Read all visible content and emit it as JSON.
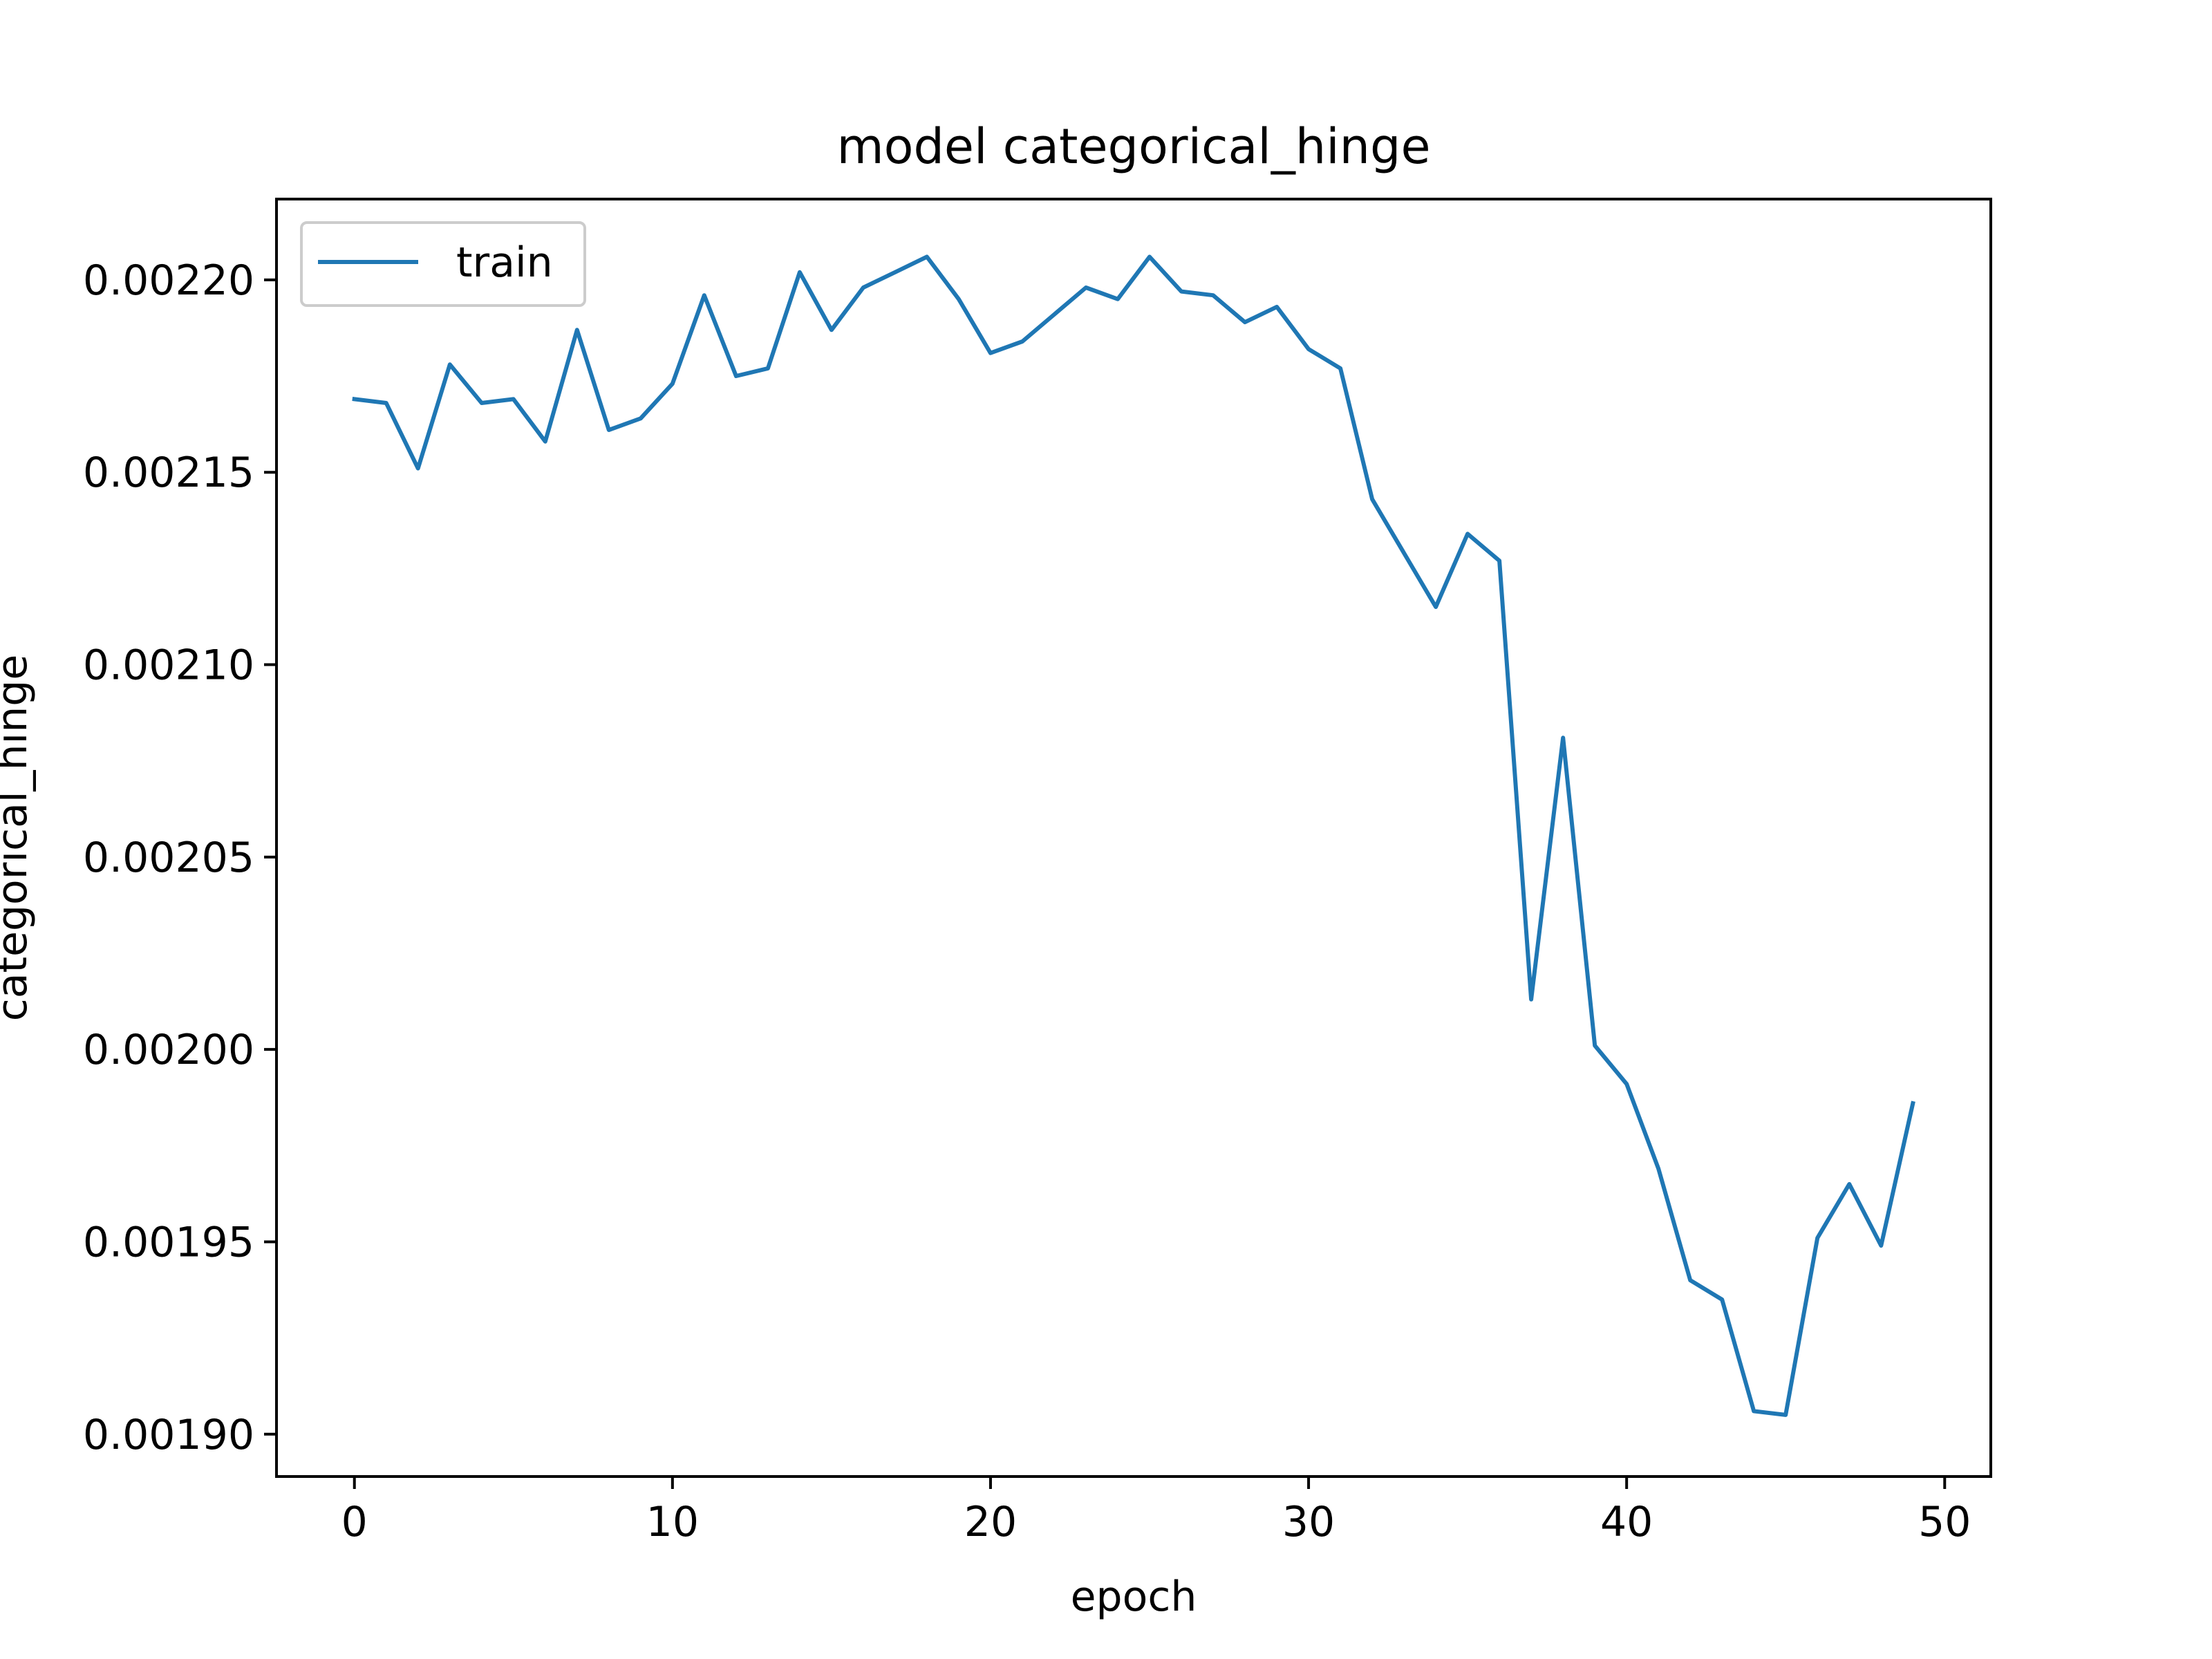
{
  "chart_data": {
    "type": "line",
    "title": "model categorical_hinge",
    "xlabel": "epoch",
    "ylabel": "categorical_hinge",
    "xlim": [
      -2.45,
      51.45
    ],
    "ylim": [
      0.001889,
      0.002221
    ],
    "xticks": [
      0,
      10,
      20,
      30,
      40,
      50
    ],
    "xtick_labels": [
      "0",
      "10",
      "20",
      "30",
      "40",
      "50"
    ],
    "yticks": [
      0.0019,
      0.00195,
      0.002,
      0.00205,
      0.0021,
      0.00215,
      0.0022
    ],
    "ytick_labels": [
      "0.00190",
      "0.00195",
      "0.00200",
      "0.00205",
      "0.00210",
      "0.00215",
      "0.00220"
    ],
    "grid": false,
    "legend_position": "upper left",
    "series": [
      {
        "name": "train",
        "color": "#1f77b4",
        "x": [
          0,
          1,
          2,
          3,
          4,
          5,
          6,
          7,
          8,
          9,
          10,
          11,
          12,
          13,
          14,
          15,
          16,
          17,
          18,
          19,
          20,
          21,
          22,
          23,
          24,
          25,
          26,
          27,
          28,
          29,
          30,
          31,
          32,
          33,
          34,
          35,
          36,
          37,
          38,
          39,
          40,
          41,
          42,
          43,
          44,
          45,
          46,
          47,
          48,
          49
        ],
        "values": [
          0.002169,
          0.002168,
          0.002151,
          0.002178,
          0.002168,
          0.002169,
          0.002158,
          0.002187,
          0.002161,
          0.002164,
          0.002173,
          0.002196,
          0.002175,
          0.002177,
          0.002202,
          0.002187,
          0.002198,
          0.002202,
          0.002206,
          0.002195,
          0.002181,
          0.002184,
          0.002191,
          0.002198,
          0.002195,
          0.002206,
          0.002197,
          0.002196,
          0.002189,
          0.002193,
          0.002182,
          0.002177,
          0.002143,
          0.002129,
          0.002115,
          0.002134,
          0.002127,
          0.002013,
          0.002081,
          0.002001,
          0.001991,
          0.001969,
          0.00194,
          0.001935,
          0.001906,
          0.001905,
          0.001951,
          0.001965,
          0.001949,
          0.001986
        ]
      }
    ]
  }
}
